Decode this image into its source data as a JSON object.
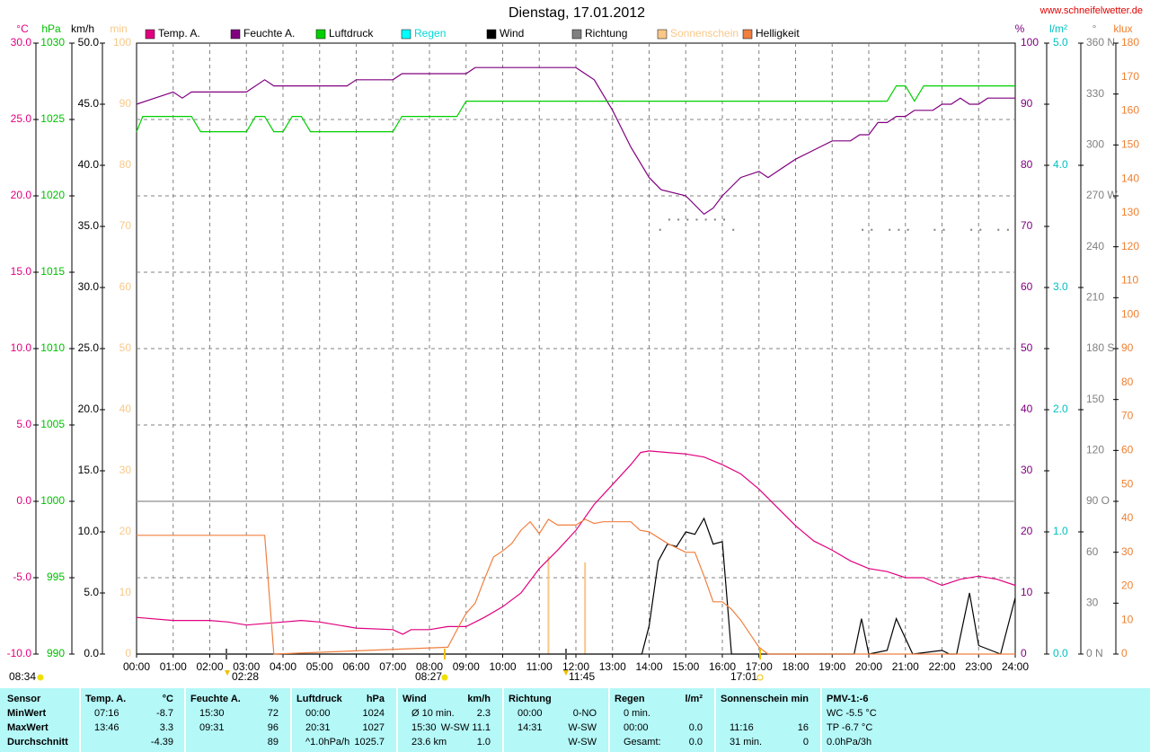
{
  "chart_data": {
    "type": "line",
    "title": "Dienstag, 17.01.2012",
    "url": "www.schneifelwetter.de",
    "grid": true,
    "xlim": [
      0,
      24
    ],
    "xticks": [
      {
        "value": 0,
        "label": "00:00"
      },
      {
        "value": 1,
        "label": "01:00"
      },
      {
        "value": 2,
        "label": "02:00"
      },
      {
        "value": 3,
        "label": "03:00"
      },
      {
        "value": 4,
        "label": "04:00"
      },
      {
        "value": 5,
        "label": "05:00"
      },
      {
        "value": 6,
        "label": "06:00"
      },
      {
        "value": 7,
        "label": "07:00"
      },
      {
        "value": 8,
        "label": "08:00"
      },
      {
        "value": 9,
        "label": "09:00"
      },
      {
        "value": 10,
        "label": "10:00"
      },
      {
        "value": 11,
        "label": "11:00"
      },
      {
        "value": 12,
        "label": "12:00"
      },
      {
        "value": 13,
        "label": "13:00"
      },
      {
        "value": 14,
        "label": "14:00"
      },
      {
        "value": 15,
        "label": "15:00"
      },
      {
        "value": 16,
        "label": "16:00"
      },
      {
        "value": 17,
        "label": "17:00"
      },
      {
        "value": 18,
        "label": "18:00"
      },
      {
        "value": 19,
        "label": "19:00"
      },
      {
        "value": 20,
        "label": "20:00"
      },
      {
        "value": 21,
        "label": "21:00"
      },
      {
        "value": 22,
        "label": "22:00"
      },
      {
        "value": 23,
        "label": "23:00"
      },
      {
        "value": 24,
        "label": "24:00"
      }
    ],
    "axes": [
      {
        "label": "°C",
        "color": "#e0007f",
        "ylim": [
          -10,
          30
        ],
        "yticks": [
          {
            "value": -10,
            "label": "-10.0"
          },
          {
            "value": -5,
            "label": "-5.0"
          },
          {
            "value": 0,
            "label": "0.0"
          },
          {
            "value": 5,
            "label": "5.0"
          },
          {
            "value": 10,
            "label": "10.0"
          },
          {
            "value": 15,
            "label": "15.0"
          },
          {
            "value": 20,
            "label": "20.0"
          },
          {
            "value": 25,
            "label": "25.0"
          },
          {
            "value": 30,
            "label": "30.0"
          }
        ]
      },
      {
        "label": "hPa",
        "color": "#00c000",
        "ylim": [
          990,
          1030
        ],
        "yticks": [
          990,
          995,
          1000,
          1005,
          1010,
          1015,
          1020,
          1025,
          1030
        ]
      },
      {
        "label": "km/h",
        "color": "#000000",
        "ylim": [
          0,
          50
        ],
        "yticks": [
          {
            "value": 0,
            "label": "0.0"
          },
          {
            "value": 5,
            "label": "5.0"
          },
          {
            "value": 10,
            "label": "10.0"
          },
          {
            "value": 15,
            "label": "15.0"
          },
          {
            "value": 20,
            "label": "20.0"
          },
          {
            "value": 25,
            "label": "25.0"
          },
          {
            "value": 30,
            "label": "30.0"
          },
          {
            "value": 35,
            "label": "35.0"
          },
          {
            "value": 40,
            "label": "40.0"
          },
          {
            "value": 45,
            "label": "45.0"
          },
          {
            "value": 50,
            "label": "50.0"
          }
        ]
      },
      {
        "label": "min",
        "color": "#f8c888",
        "ylim": [
          0,
          100
        ],
        "yticks": [
          0,
          10,
          20,
          30,
          40,
          50,
          60,
          70,
          80,
          90,
          100
        ]
      },
      {
        "label": "%",
        "color": "#800080",
        "ylim": [
          0,
          100
        ],
        "yticks": [
          0,
          10,
          20,
          30,
          40,
          50,
          60,
          70,
          80,
          90,
          100
        ]
      },
      {
        "label": "l/m²",
        "color": "#00c0c0",
        "ylim": [
          0,
          5
        ],
        "yticks": [
          {
            "value": 0,
            "label": "0.0"
          },
          {
            "value": 1,
            "label": "1.0"
          },
          {
            "value": 2,
            "label": "2.0"
          },
          {
            "value": 3,
            "label": "3.0"
          },
          {
            "value": 4,
            "label": "4.0"
          },
          {
            "value": 5,
            "label": "5.0"
          }
        ]
      },
      {
        "label": "°",
        "color": "#808080",
        "ylim": [
          0,
          360
        ],
        "yticks": [
          {
            "value": 0,
            "label": "0 N"
          },
          30,
          60,
          {
            "value": 90,
            "label": "90 O"
          },
          120,
          150,
          {
            "value": 180,
            "label": "180 S"
          },
          210,
          240,
          {
            "value": 270,
            "label": "270 W"
          },
          300,
          330,
          {
            "value": 360,
            "label": "360 N"
          }
        ]
      },
      {
        "label": "klux",
        "color": "#f08030",
        "ylim": [
          0,
          180
        ],
        "yticks": [
          0,
          10,
          20,
          30,
          40,
          50,
          60,
          70,
          80,
          90,
          100,
          110,
          120,
          130,
          140,
          150,
          160,
          170,
          180
        ]
      }
    ],
    "series": [
      {
        "name": "Temp. A.",
        "color": "#e0007f",
        "axis": 0,
        "style": "line",
        "x": [
          0,
          1,
          2,
          2.5,
          3,
          4,
          4.5,
          5,
          6,
          7,
          7.27,
          7.5,
          8,
          8.5,
          9,
          9.5,
          10,
          10.5,
          11,
          11.5,
          12,
          12.5,
          13,
          13.5,
          13.77,
          14,
          14.5,
          15,
          15.5,
          16,
          16.5,
          17,
          17.5,
          18,
          18.5,
          19,
          19.5,
          20,
          20.5,
          21,
          21.5,
          22,
          22.5,
          23,
          23.5,
          24
        ],
        "values": [
          -7.6,
          -7.8,
          -7.8,
          -7.9,
          -8.1,
          -7.9,
          -7.8,
          -7.9,
          -8.3,
          -8.4,
          -8.7,
          -8.4,
          -8.4,
          -8.2,
          -8.2,
          -7.6,
          -6.9,
          -6.0,
          -4.4,
          -3.2,
          -1.9,
          -0.2,
          1.1,
          2.4,
          3.2,
          3.3,
          3.2,
          3.1,
          2.9,
          2.4,
          1.8,
          0.8,
          -0.4,
          -1.6,
          -2.6,
          -3.2,
          -3.9,
          -4.4,
          -4.6,
          -5.0,
          -5.0,
          -5.5,
          -5.1,
          -4.9,
          -5.1,
          -5.5
        ]
      },
      {
        "name": "Feuchte A.",
        "color": "#800080",
        "axis": 4,
        "style": "line",
        "x": [
          0,
          0.5,
          1,
          1.25,
          1.5,
          3,
          3.5,
          3.75,
          5.75,
          6,
          7,
          7.25,
          9,
          9.25,
          12,
          12.25,
          12.5,
          13,
          13.5,
          14,
          14.33,
          15,
          15.5,
          15.75,
          16,
          16.5,
          17,
          17.25,
          17.5,
          18,
          18.5,
          19,
          19.5,
          19.75,
          20,
          20.25,
          20.5,
          20.75,
          21,
          21.25,
          21.75,
          22,
          22.25,
          22.5,
          22.75,
          23,
          23.25,
          24
        ],
        "values": [
          90,
          91,
          92,
          91,
          92,
          92,
          94,
          93,
          93,
          94,
          94,
          95,
          95,
          96,
          96,
          95,
          94,
          89,
          83,
          78,
          76,
          75,
          72,
          73,
          75,
          78,
          79,
          78,
          79,
          81,
          82.5,
          84,
          84,
          85,
          85,
          87,
          87,
          88,
          88,
          89,
          89,
          90,
          90,
          91,
          90,
          90,
          91,
          91
        ]
      },
      {
        "name": "Luftdruck",
        "color": "#00d000",
        "axis": 1,
        "style": "line",
        "x": [
          0,
          0.17,
          1.5,
          1.75,
          3,
          3.25,
          3.5,
          3.75,
          4,
          4.25,
          4.5,
          4.75,
          7,
          7.25,
          8.75,
          9,
          20.5,
          20.75,
          21,
          21.25,
          21.5,
          24
        ],
        "values": [
          1024.2,
          1025.2,
          1025.2,
          1024.2,
          1024.2,
          1025.2,
          1025.2,
          1024.2,
          1024.2,
          1025.2,
          1025.2,
          1024.2,
          1024.2,
          1025.2,
          1025.2,
          1026.2,
          1026.2,
          1027.2,
          1027.2,
          1026.2,
          1027.2,
          1027.2
        ]
      },
      {
        "name": "Regen",
        "color": "#00ffff",
        "label_color": "#00d8d8",
        "axis": 5,
        "style": "line"
      },
      {
        "name": "Wind",
        "color": "#000000",
        "axis": 2,
        "style": "line",
        "x": [
          0,
          13.8,
          14,
          14.25,
          14.5,
          14.75,
          15,
          15.25,
          15.5,
          15.75,
          16,
          16.25,
          19.6,
          19.8,
          20,
          20.5,
          20.75,
          21.2,
          22,
          22.2,
          22.4,
          22.75,
          23,
          23.6,
          24
        ],
        "values": [
          0,
          0,
          2.3,
          7.6,
          9,
          8.8,
          10,
          9.8,
          11.1,
          9,
          9.2,
          0,
          0,
          2.9,
          0,
          0.3,
          2.9,
          0,
          0.3,
          0,
          0,
          5,
          0.7,
          0,
          4.6
        ]
      },
      {
        "name": "Richtung",
        "color": "#808080",
        "axis": 6,
        "style": "dots",
        "x": [
          14.3,
          14.55,
          14.8,
          15.05,
          15.3,
          15.55,
          15.8,
          16.05,
          16.3,
          19.83,
          20.08,
          20.57,
          20.82,
          21.07,
          21.8,
          22.05,
          22.8,
          23.05,
          23.54,
          23.8
        ],
        "values": [
          250,
          256,
          256,
          256,
          256,
          256,
          256,
          256,
          250,
          250,
          250,
          250,
          250,
          250,
          250,
          250,
          250,
          250,
          250,
          250
        ]
      },
      {
        "name": "Sonnenschein",
        "color": "#f8c888",
        "label_color": "#f8c888",
        "axis": 3,
        "style": "bar",
        "x": [
          11.25,
          12.25
        ],
        "values": [
          16,
          15
        ]
      },
      {
        "name": "Helligkeit",
        "color": "#f08040",
        "axis": 7,
        "style": "line",
        "x": [
          0,
          3.5,
          3.75,
          8.5,
          8.83,
          9,
          9.25,
          9.5,
          9.75,
          10,
          10.25,
          10.5,
          10.75,
          11,
          11.25,
          11.5,
          12,
          12.25,
          12.5,
          12.75,
          13,
          13.5,
          13.75,
          14,
          14.5,
          15,
          15.25,
          15.5,
          15.75,
          16,
          16.25,
          16.5,
          16.75,
          17,
          17.25,
          24
        ],
        "values": [
          35,
          35,
          0,
          2,
          8.7,
          12,
          15,
          22,
          28.6,
          30.4,
          32.6,
          36.5,
          39,
          35.5,
          39.7,
          38,
          38,
          39.7,
          38.5,
          39,
          39,
          39,
          36.5,
          36,
          32.6,
          30,
          30,
          23,
          15.4,
          15.4,
          13.2,
          10,
          6,
          2,
          0,
          0
        ]
      }
    ],
    "annotations": [
      "08:34",
      "02:28",
      "08:27",
      "11:45",
      "17:01"
    ]
  },
  "table": {
    "row_labels": [
      "Sensor",
      "MinWert",
      "MaxWert",
      "Durchschnitt"
    ],
    "columns": [
      {
        "title": "Temp. A.",
        "unit": "°C",
        "rows": [
          {
            "l": "07:16",
            "r": "-8.7"
          },
          {
            "l": "13:46",
            "r": "3.3"
          },
          {
            "r": "-4.39"
          }
        ]
      },
      {
        "title": "Feuchte A.",
        "unit": "%",
        "rows": [
          {
            "l": "15:30",
            "r": "72"
          },
          {
            "l": "09:31",
            "r": "96"
          },
          {
            "r": "89"
          }
        ]
      },
      {
        "title": "Luftdruck",
        "unit": "hPa",
        "rows": [
          {
            "l": "00:00",
            "r": "1024"
          },
          {
            "l": "20:31",
            "r": "1027"
          },
          {
            "l": "^1.0hPa/h",
            "r": "1025.7"
          }
        ]
      },
      {
        "title": "Wind",
        "unit": "km/h",
        "rows": [
          {
            "l": "Ø 10 min.",
            "r": "2.3"
          },
          {
            "l": "15:30",
            "r": "W-SW 11.1"
          },
          {
            "l": "23.6 km",
            "r": "1.0"
          }
        ]
      },
      {
        "title": "Richtung",
        "rows": [
          {
            "l": "00:00",
            "r": "0-NO"
          },
          {
            "l": "14:31",
            "r": "W-SW"
          },
          {
            "r": "W-SW"
          }
        ]
      },
      {
        "title": "Regen",
        "unit": "l/m²",
        "rows": [
          {
            "l": "0 min."
          },
          {
            "l": "00:00",
            "r": "0.0"
          },
          {
            "l": "Gesamt:",
            "r": "0.0"
          }
        ]
      },
      {
        "title": "Sonnenschein",
        "unit": "min",
        "rows": [
          {},
          {
            "l": "11:16",
            "r": "16"
          },
          {
            "l": "31 min.",
            "r": "0"
          }
        ]
      },
      {
        "title": "PMV-1:-6",
        "rows": [
          {
            "l": "WC -5.5 °C"
          },
          {
            "l": "TP -6.7 °C"
          },
          {
            "l": "0.0hPa/3h"
          }
        ]
      }
    ]
  }
}
